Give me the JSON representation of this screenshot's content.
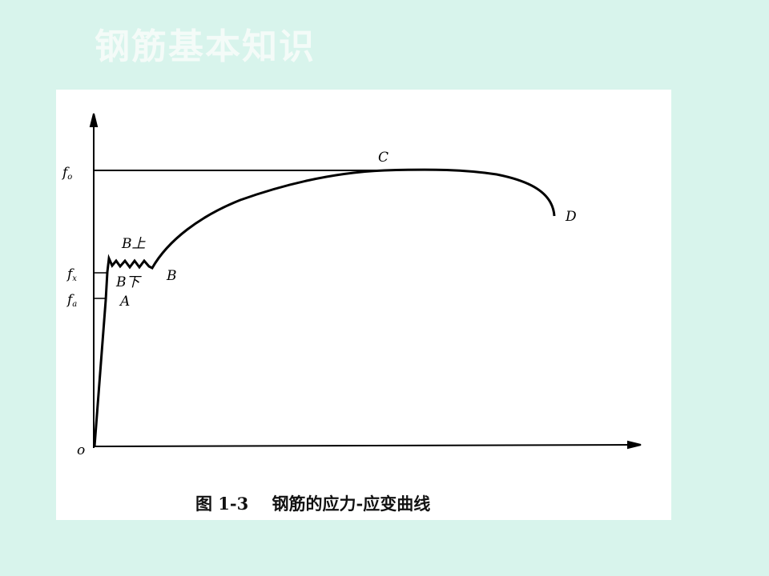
{
  "slide": {
    "title": "钢筋基本知识"
  },
  "figure": {
    "caption": "图 1-3    钢筋的应力-应变曲线",
    "origin_label": "o",
    "y_labels": [
      {
        "base": "f",
        "sub": "o"
      },
      {
        "base": "f",
        "sub": "x"
      },
      {
        "base": "f",
        "sub": "a"
      }
    ],
    "point_labels": {
      "A": "A",
      "B_upper": "B上",
      "B_lower": "B下",
      "B": "B",
      "C": "C",
      "D": "D"
    }
  }
}
